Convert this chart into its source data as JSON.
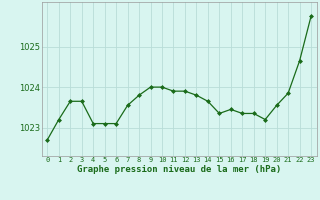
{
  "x": [
    0,
    1,
    2,
    3,
    4,
    5,
    6,
    7,
    8,
    9,
    10,
    11,
    12,
    13,
    14,
    15,
    16,
    17,
    18,
    19,
    20,
    21,
    22,
    23
  ],
  "y": [
    1022.7,
    1023.2,
    1023.65,
    1023.65,
    1023.1,
    1023.1,
    1023.1,
    1023.55,
    1023.8,
    1024.0,
    1024.0,
    1023.9,
    1023.9,
    1023.8,
    1023.65,
    1023.35,
    1023.45,
    1023.35,
    1023.35,
    1023.2,
    1023.55,
    1023.85,
    1024.65,
    1025.75
  ],
  "line_color": "#1a6b1a",
  "marker_color": "#1a6b1a",
  "bg_color": "#d8f5f0",
  "grid_color": "#b8ddd8",
  "xlabel": "Graphe pression niveau de la mer (hPa)",
  "xlabel_color": "#1a6b1a",
  "tick_color": "#1a6b1a",
  "yticks": [
    1023,
    1024,
    1025
  ],
  "ylim": [
    1022.3,
    1026.1
  ],
  "xlim": [
    -0.5,
    23.5
  ],
  "xtick_labels": [
    "0",
    "1",
    "2",
    "3",
    "4",
    "5",
    "6",
    "7",
    "8",
    "9",
    "10",
    "11",
    "12",
    "13",
    "14",
    "15",
    "16",
    "17",
    "18",
    "19",
    "20",
    "21",
    "22",
    "23"
  ]
}
